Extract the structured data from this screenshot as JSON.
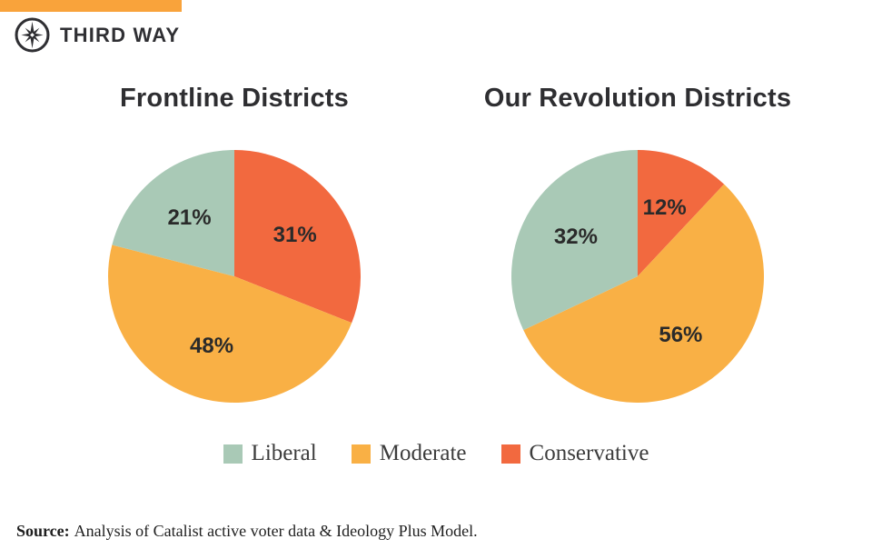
{
  "brand": {
    "name": "THIRD WAY",
    "logo_icon": "compass-star-icon",
    "topbar_color": "#F9A33B",
    "ink_color": "#2F2F33"
  },
  "chart_data": [
    {
      "type": "pie",
      "title": "Frontline Districts",
      "start_angle": "top",
      "direction": "clockwise",
      "label_suffix": "%",
      "slices": [
        {
          "label": "Conservative",
          "value": 31,
          "color": "#F2693F"
        },
        {
          "label": "Moderate",
          "value": 48,
          "color": "#F9B045"
        },
        {
          "label": "Liberal",
          "value": 21,
          "color": "#A9C9B6"
        }
      ]
    },
    {
      "type": "pie",
      "title": "Our Revolution Districts",
      "start_angle": "top",
      "direction": "clockwise",
      "label_suffix": "%",
      "slices": [
        {
          "label": "Conservative",
          "value": 12,
          "color": "#F2693F"
        },
        {
          "label": "Moderate",
          "value": 56,
          "color": "#F9B045"
        },
        {
          "label": "Liberal",
          "value": 32,
          "color": "#A9C9B6"
        }
      ]
    }
  ],
  "legend": {
    "position": "bottom-center",
    "items": [
      {
        "label": "Liberal",
        "color": "#A9C9B6"
      },
      {
        "label": "Moderate",
        "color": "#F9B045"
      },
      {
        "label": "Conservative",
        "color": "#F2693F"
      }
    ]
  },
  "source": {
    "prefix": "Source:",
    "text": "Analysis of Catalist active voter data & Ideology Plus Model."
  }
}
